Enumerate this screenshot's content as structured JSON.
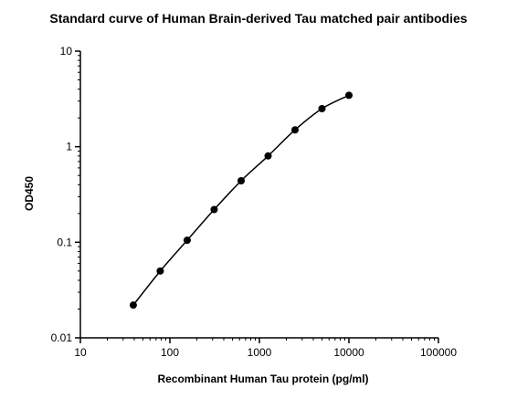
{
  "chart_data": {
    "type": "scatter",
    "title": "Standard curve of Human Brain-derived Tau matched pair antibodies",
    "xlabel": "Recombinant Human Tau protein (pg/ml)",
    "ylabel": "OD450",
    "x_scale": "log",
    "y_scale": "log",
    "xlim": [
      10,
      100000
    ],
    "ylim": [
      0.01,
      10
    ],
    "x_ticks": [
      10,
      100,
      1000,
      10000,
      100000
    ],
    "x_tick_labels": [
      "10",
      "100",
      "1000",
      "10000",
      "100000"
    ],
    "y_ticks": [
      0.01,
      0.1,
      1,
      10
    ],
    "y_tick_labels": [
      "0.01",
      "0.1",
      "1",
      "10"
    ],
    "grid": false,
    "series": [
      {
        "x": [
          39,
          78,
          156,
          312,
          625,
          1250,
          2500,
          5000,
          10000
        ],
        "y": [
          0.022,
          0.05,
          0.105,
          0.22,
          0.44,
          0.8,
          1.5,
          2.5,
          3.45
        ],
        "fitted_curve": true,
        "color": "#000000"
      }
    ]
  }
}
